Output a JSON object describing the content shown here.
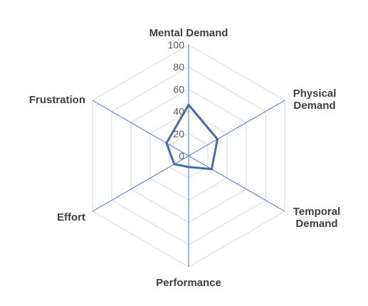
{
  "chart_data": {
    "type": "radar",
    "axes": [
      "Mental Demand",
      "Physical Demand",
      "Temporal Demand",
      "Performance",
      "Effort",
      "Frustration"
    ],
    "axis_label_lines": [
      [
        "Mental Demand"
      ],
      [
        "Physical",
        "Demand"
      ],
      [
        "Temporal",
        "Demand"
      ],
      [
        "Performance"
      ],
      [
        "Effort"
      ],
      [
        "Frustration"
      ]
    ],
    "rlim": [
      0,
      100
    ],
    "ticks": [
      0,
      20,
      40,
      60,
      80,
      100
    ],
    "tick_labels": [
      "0",
      "20",
      "40",
      "60",
      "80",
      "100"
    ],
    "series": [
      {
        "values": [
          46,
          30,
          24,
          10,
          15,
          23
        ]
      }
    ],
    "colors": {
      "series": "#4a6aa8",
      "spokes": "#4472c4",
      "grid": "#d9d9d9",
      "text": "#404040"
    },
    "grid": true,
    "legend": "none"
  }
}
